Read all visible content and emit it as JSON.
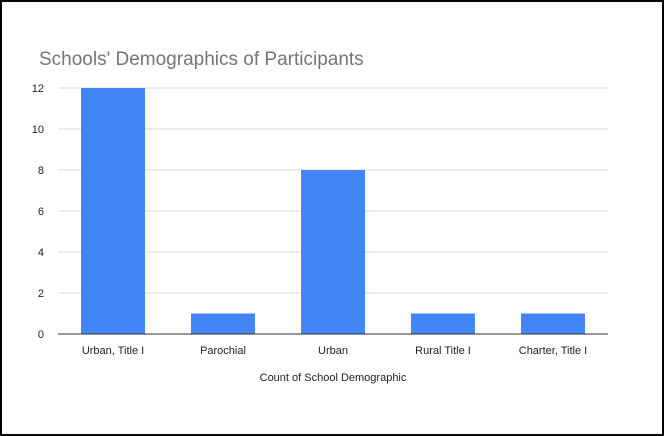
{
  "chart_data": {
    "type": "bar",
    "title": "Schools' Demographics of Participants",
    "xlabel": "Count of School Demographic",
    "ylabel": "",
    "categories": [
      "Urban, Title I",
      "Parochial",
      "Urban",
      "Rural Title I",
      "Charter, Title I"
    ],
    "values": [
      12,
      1,
      8,
      1,
      1
    ],
    "ylim": [
      0,
      12
    ],
    "yticks": [
      0,
      2,
      4,
      6,
      8,
      10,
      12
    ],
    "grid": true,
    "legend": "none",
    "bar_color": "#4285f4",
    "grid_color": "#d9d9d9",
    "axis_color": "#333333"
  }
}
